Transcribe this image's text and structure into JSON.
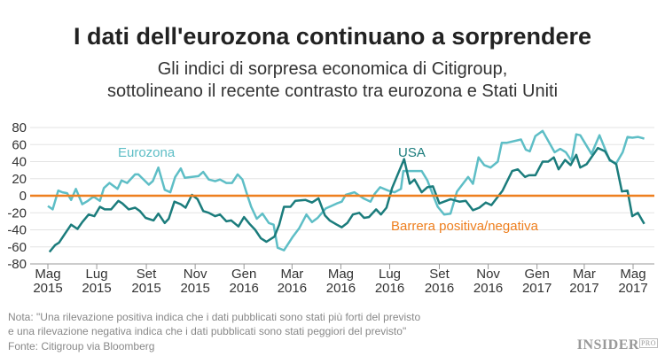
{
  "title": "I dati dell'eurozona continuano a sorprendere",
  "subtitle_lines": [
    "Gli indici di sorpresa economica di Citigroup,",
    "sottolineano il recente contrasto tra eurozona e Stati Uniti"
  ],
  "notes": {
    "line1": "Nota: \"Una rilevazione positiva indica che i dati pubblicati sono stati più forti del previsto",
    "line2": "e una rilevazione negativa indica che i dati pubblicati sono stati peggiori del previsto\"",
    "source": "Fonte: Citigroup via Bloomberg"
  },
  "logo": {
    "main": "INSIDER",
    "sup": "PRO"
  },
  "chart_data": {
    "type": "line",
    "ylim": [
      -80,
      80
    ],
    "yticks": [
      80,
      60,
      40,
      20,
      0,
      -20,
      -40,
      -60,
      -80
    ],
    "xlim": [
      "2015-05-01",
      "2017-05-20"
    ],
    "xticks": [
      {
        "date": "2015-05-01",
        "label": [
          "Mag",
          "2015"
        ]
      },
      {
        "date": "2015-07-01",
        "label": [
          "Lug",
          "2015"
        ]
      },
      {
        "date": "2015-09-01",
        "label": [
          "Set",
          "2015"
        ]
      },
      {
        "date": "2015-11-01",
        "label": [
          "Nov",
          "2015"
        ]
      },
      {
        "date": "2016-01-01",
        "label": [
          "Gen",
          "2016"
        ]
      },
      {
        "date": "2016-03-01",
        "label": [
          "Mar",
          "2016"
        ]
      },
      {
        "date": "2016-05-01",
        "label": [
          "Mag",
          "2016"
        ]
      },
      {
        "date": "2016-07-01",
        "label": [
          "Lug",
          "2016"
        ]
      },
      {
        "date": "2016-09-01",
        "label": [
          "Set",
          "2016"
        ]
      },
      {
        "date": "2016-11-01",
        "label": [
          "Nov",
          "2016"
        ]
      },
      {
        "date": "2017-01-01",
        "label": [
          "Gen",
          "2017"
        ]
      },
      {
        "date": "2017-03-01",
        "label": [
          "Mar",
          "2017"
        ]
      },
      {
        "date": "2017-05-01",
        "label": [
          "Mag",
          "2017"
        ]
      }
    ],
    "grid": true,
    "reference_line": {
      "value": 0,
      "label": "Barrera positiva/negativa",
      "color": "#ee7f1e"
    },
    "series": [
      {
        "name": "Eurozona",
        "color": "#5ebec6",
        "points": [
          [
            "2015-05-01",
            -12
          ],
          [
            "2015-05-07",
            -16
          ],
          [
            "2015-05-14",
            6
          ],
          [
            "2015-05-19",
            4
          ],
          [
            "2015-05-25",
            3
          ],
          [
            "2015-05-30",
            -5
          ],
          [
            "2015-06-05",
            8
          ],
          [
            "2015-06-13",
            -10
          ],
          [
            "2015-06-20",
            -6
          ],
          [
            "2015-06-27",
            -1
          ],
          [
            "2015-07-05",
            -6
          ],
          [
            "2015-07-10",
            9
          ],
          [
            "2015-07-17",
            15
          ],
          [
            "2015-07-27",
            8
          ],
          [
            "2015-08-01",
            18
          ],
          [
            "2015-08-08",
            15
          ],
          [
            "2015-08-18",
            25
          ],
          [
            "2015-08-22",
            25
          ],
          [
            "2015-09-04",
            13
          ],
          [
            "2015-09-09",
            17
          ],
          [
            "2015-09-16",
            33
          ],
          [
            "2015-09-24",
            7
          ],
          [
            "2015-10-01",
            4
          ],
          [
            "2015-10-07",
            22
          ],
          [
            "2015-10-14",
            32
          ],
          [
            "2015-10-19",
            21
          ],
          [
            "2015-11-05",
            23
          ],
          [
            "2015-11-11",
            28
          ],
          [
            "2015-11-18",
            19
          ],
          [
            "2015-11-26",
            17
          ],
          [
            "2015-12-02",
            19
          ],
          [
            "2015-12-10",
            15
          ],
          [
            "2015-12-17",
            15
          ],
          [
            "2015-12-24",
            25
          ],
          [
            "2015-12-30",
            19
          ],
          [
            "2016-01-05",
            1
          ],
          [
            "2016-01-10",
            -13
          ],
          [
            "2016-01-17",
            -27
          ],
          [
            "2016-01-24",
            -21
          ],
          [
            "2016-02-01",
            -32
          ],
          [
            "2016-02-07",
            -34
          ],
          [
            "2016-02-12",
            -61
          ],
          [
            "2016-02-20",
            -64
          ],
          [
            "2016-03-02",
            -48
          ],
          [
            "2016-03-10",
            -38
          ],
          [
            "2016-03-19",
            -22
          ],
          [
            "2016-03-26",
            -31
          ],
          [
            "2016-04-02",
            -26
          ],
          [
            "2016-04-12",
            -15
          ],
          [
            "2016-04-19",
            -12
          ],
          [
            "2016-04-26",
            -9
          ],
          [
            "2016-05-02",
            -7
          ],
          [
            "2016-05-07",
            1
          ],
          [
            "2016-05-18",
            4
          ],
          [
            "2016-05-29",
            -3
          ],
          [
            "2016-06-07",
            -7
          ],
          [
            "2016-06-12",
            2
          ],
          [
            "2016-06-19",
            10
          ],
          [
            "2016-06-29",
            6
          ],
          [
            "2016-07-07",
            4
          ],
          [
            "2016-07-15",
            8
          ],
          [
            "2016-07-18",
            29
          ],
          [
            "2016-08-10",
            29
          ],
          [
            "2016-08-17",
            18
          ],
          [
            "2016-08-24",
            1
          ],
          [
            "2016-08-30",
            -13
          ],
          [
            "2016-09-07",
            -22
          ],
          [
            "2016-09-15",
            -21
          ],
          [
            "2016-09-23",
            5
          ],
          [
            "2016-10-07",
            22
          ],
          [
            "2016-10-13",
            14
          ],
          [
            "2016-10-20",
            45
          ],
          [
            "2016-10-27",
            36
          ],
          [
            "2016-11-04",
            33
          ],
          [
            "2016-11-13",
            40
          ],
          [
            "2016-11-18",
            62
          ],
          [
            "2016-11-24",
            62
          ],
          [
            "2016-12-12",
            66
          ],
          [
            "2016-12-18",
            54
          ],
          [
            "2016-12-23",
            52
          ],
          [
            "2016-12-30",
            70
          ],
          [
            "2017-01-08",
            76
          ],
          [
            "2017-01-23",
            51
          ],
          [
            "2017-01-30",
            55
          ],
          [
            "2017-02-06",
            51
          ],
          [
            "2017-02-13",
            41
          ],
          [
            "2017-02-19",
            72
          ],
          [
            "2017-02-24",
            71
          ],
          [
            "2017-03-10",
            49
          ],
          [
            "2017-03-20",
            71
          ],
          [
            "2017-04-02",
            41
          ],
          [
            "2017-04-10",
            38
          ],
          [
            "2017-04-18",
            51
          ],
          [
            "2017-04-24",
            69
          ],
          [
            "2017-04-30",
            68
          ],
          [
            "2017-05-07",
            69
          ],
          [
            "2017-05-15",
            67
          ]
        ]
      },
      {
        "name": "USA",
        "color": "#1b7c7c",
        "points": [
          [
            "2015-05-03",
            -66
          ],
          [
            "2015-05-10",
            -58
          ],
          [
            "2015-05-15",
            -55
          ],
          [
            "2015-05-22",
            -45
          ],
          [
            "2015-05-30",
            -34
          ],
          [
            "2015-06-07",
            -39
          ],
          [
            "2015-06-13",
            -31
          ],
          [
            "2015-06-21",
            -22
          ],
          [
            "2015-06-28",
            -24
          ],
          [
            "2015-07-05",
            -13
          ],
          [
            "2015-07-11",
            -16
          ],
          [
            "2015-07-19",
            -16
          ],
          [
            "2015-07-28",
            -6
          ],
          [
            "2015-08-02",
            -9
          ],
          [
            "2015-08-10",
            -16
          ],
          [
            "2015-08-18",
            -14
          ],
          [
            "2015-08-24",
            -18
          ],
          [
            "2015-08-31",
            -26
          ],
          [
            "2015-09-10",
            -29
          ],
          [
            "2015-09-16",
            -21
          ],
          [
            "2015-09-24",
            -32
          ],
          [
            "2015-09-29",
            -27
          ],
          [
            "2015-10-06",
            -7
          ],
          [
            "2015-10-14",
            -10
          ],
          [
            "2015-10-20",
            -14
          ],
          [
            "2015-10-28",
            1
          ],
          [
            "2015-11-04",
            -4
          ],
          [
            "2015-11-11",
            -18
          ],
          [
            "2015-11-18",
            -20
          ],
          [
            "2015-11-26",
            -24
          ],
          [
            "2015-12-02",
            -22
          ],
          [
            "2015-12-10",
            -30
          ],
          [
            "2015-12-16",
            -29
          ],
          [
            "2015-12-25",
            -36
          ],
          [
            "2016-01-01",
            -25
          ],
          [
            "2016-01-08",
            -33
          ],
          [
            "2016-01-15",
            -40
          ],
          [
            "2016-01-22",
            -50
          ],
          [
            "2016-01-29",
            -54
          ],
          [
            "2016-02-08",
            -48
          ],
          [
            "2016-02-14",
            -34
          ],
          [
            "2016-02-20",
            -13
          ],
          [
            "2016-02-28",
            -13
          ],
          [
            "2016-03-05",
            -6
          ],
          [
            "2016-03-18",
            -5
          ],
          [
            "2016-03-26",
            -8
          ],
          [
            "2016-04-03",
            -3
          ],
          [
            "2016-04-11",
            -23
          ],
          [
            "2016-04-17",
            -29
          ],
          [
            "2016-04-26",
            -34
          ],
          [
            "2016-05-02",
            -37
          ],
          [
            "2016-05-09",
            -32
          ],
          [
            "2016-05-16",
            -22
          ],
          [
            "2016-05-24",
            -20
          ],
          [
            "2016-05-30",
            -26
          ],
          [
            "2016-06-05",
            -25
          ],
          [
            "2016-06-14",
            -16
          ],
          [
            "2016-06-20",
            -22
          ],
          [
            "2016-06-27",
            -14
          ],
          [
            "2016-07-04",
            9
          ],
          [
            "2016-07-19",
            43
          ],
          [
            "2016-07-26",
            14
          ],
          [
            "2016-08-01",
            19
          ],
          [
            "2016-08-10",
            4
          ],
          [
            "2016-08-17",
            10
          ],
          [
            "2016-08-24",
            11
          ],
          [
            "2016-09-01",
            -9
          ],
          [
            "2016-09-15",
            -4
          ],
          [
            "2016-09-26",
            -7
          ],
          [
            "2016-10-04",
            -6
          ],
          [
            "2016-10-13",
            -17
          ],
          [
            "2016-10-21",
            -14
          ],
          [
            "2016-10-29",
            -8
          ],
          [
            "2016-11-05",
            -11
          ],
          [
            "2016-11-19",
            6
          ],
          [
            "2016-12-01",
            29
          ],
          [
            "2016-12-08",
            31
          ],
          [
            "2016-12-17",
            22
          ],
          [
            "2016-12-22",
            24
          ],
          [
            "2016-12-30",
            24
          ],
          [
            "2017-01-08",
            40
          ],
          [
            "2017-01-15",
            40
          ],
          [
            "2017-01-22",
            45
          ],
          [
            "2017-01-28",
            31
          ],
          [
            "2017-02-05",
            42
          ],
          [
            "2017-02-12",
            36
          ],
          [
            "2017-02-19",
            48
          ],
          [
            "2017-02-24",
            33
          ],
          [
            "2017-03-04",
            37
          ],
          [
            "2017-03-18",
            56
          ],
          [
            "2017-03-27",
            52
          ],
          [
            "2017-04-02",
            42
          ],
          [
            "2017-04-10",
            37
          ],
          [
            "2017-04-17",
            5
          ],
          [
            "2017-04-24",
            6
          ],
          [
            "2017-04-30",
            -24
          ],
          [
            "2017-05-07",
            -20
          ],
          [
            "2017-05-15",
            -33
          ]
        ]
      }
    ]
  }
}
